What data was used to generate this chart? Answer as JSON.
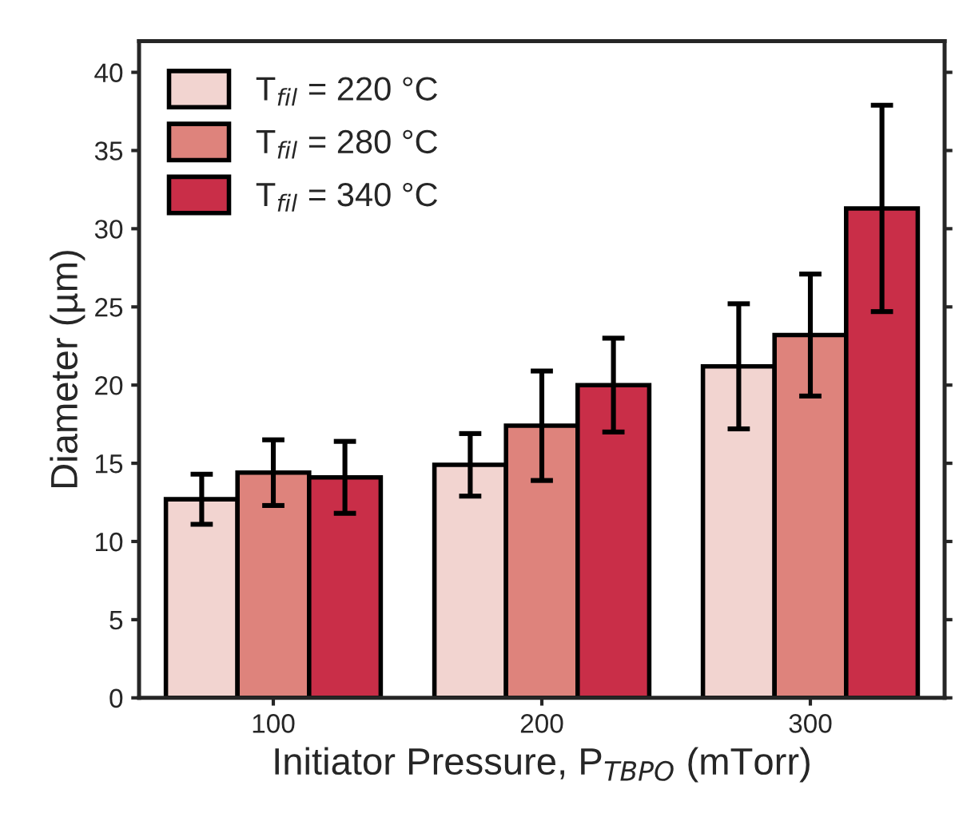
{
  "chart_data": {
    "type": "bar",
    "xlabel": "Initiator Pressure, P$_{TBPO}$ (mTorr)",
    "ylabel": "Diameter (µm)",
    "categories": [
      "100",
      "200",
      "300"
    ],
    "series": [
      {
        "name": "T$_{fil}$ = 220 °C",
        "color": "#f2d4d0",
        "values": [
          12.7,
          14.9,
          21.2
        ],
        "errors": [
          1.6,
          2.0,
          4.0
        ]
      },
      {
        "name": "T$_{fil}$ = 280 °C",
        "color": "#de837c",
        "values": [
          14.4,
          17.4,
          23.2
        ],
        "errors": [
          2.1,
          3.5,
          3.9
        ]
      },
      {
        "name": "T$_{fil}$ = 340 °C",
        "color": "#c92e48",
        "values": [
          14.1,
          20.0,
          31.3
        ],
        "errors": [
          2.3,
          3.0,
          6.6
        ]
      }
    ],
    "ylim": [
      0,
      42
    ],
    "yticks": [
      0,
      5,
      10,
      15,
      20,
      25,
      30,
      35,
      40
    ],
    "legend": "top left",
    "grid": false
  }
}
